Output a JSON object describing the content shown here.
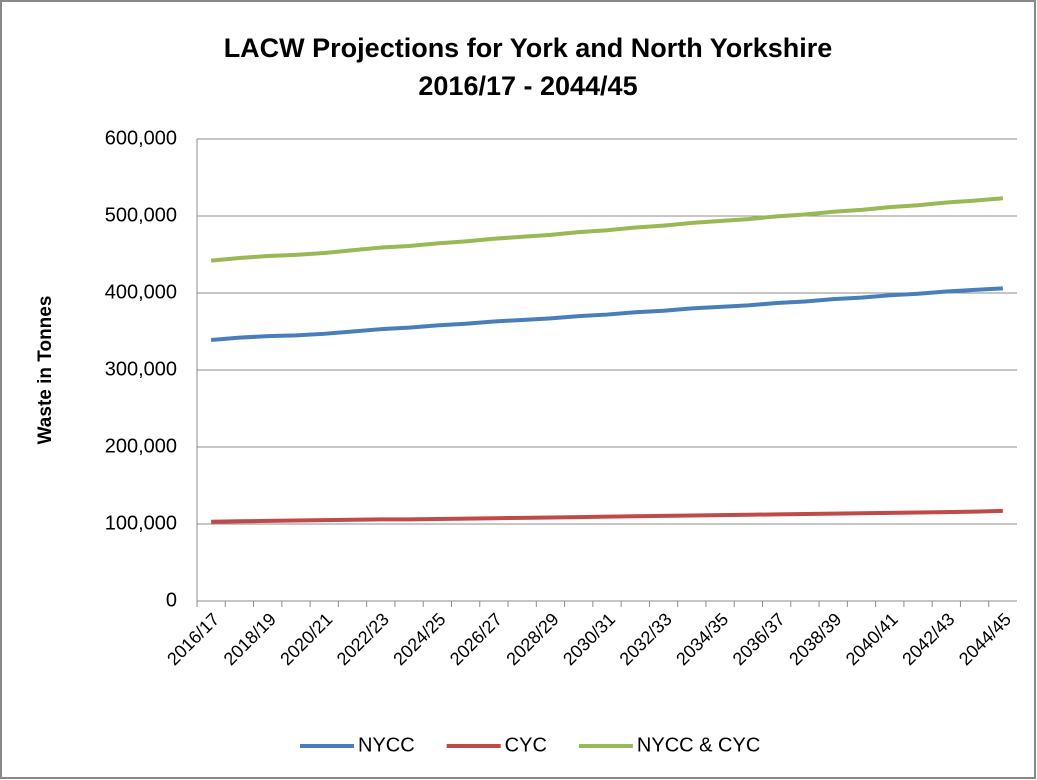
{
  "chart_data": {
    "type": "line",
    "title": "LACW Projections for York and North Yorkshire",
    "subtitle": "2016/17 - 2044/45",
    "y_label": "Waste in Tonnes",
    "categories": [
      "2016/17",
      null,
      "2018/19",
      null,
      "2020/21",
      null,
      "2022/23",
      null,
      "2024/25",
      null,
      "2026/27",
      null,
      "2028/29",
      null,
      "2030/31",
      null,
      "2032/33",
      null,
      "2034/35",
      null,
      "2036/37",
      null,
      "2038/39",
      null,
      "2040/41",
      null,
      "2042/43",
      null,
      "2044/45"
    ],
    "series": [
      {
        "name": "NYCC",
        "color": "#4a7ebb",
        "values": [
          339000,
          342000,
          344000,
          345000,
          347000,
          350000,
          353000,
          355000,
          358000,
          360000,
          363000,
          365000,
          367000,
          370000,
          372000,
          375000,
          377000,
          380000,
          382000,
          384000,
          387000,
          389000,
          392000,
          394000,
          397000,
          399000,
          402000,
          404000,
          406000
        ]
      },
      {
        "name": "CYC",
        "color": "#be4b48",
        "values": [
          103000,
          103500,
          104000,
          104500,
          105000,
          105500,
          106000,
          106000,
          106500,
          107000,
          107500,
          108000,
          108500,
          109000,
          109500,
          110000,
          110500,
          111000,
          111500,
          112000,
          112500,
          113000,
          113500,
          114000,
          114500,
          115000,
          115500,
          116000,
          117000
        ]
      },
      {
        "name": "NYCC & CYC",
        "color": "#98b954",
        "values": [
          442000,
          445500,
          448000,
          449500,
          452000,
          455500,
          459000,
          461000,
          464500,
          467000,
          470500,
          473000,
          475500,
          479000,
          481500,
          485000,
          487500,
          491000,
          493500,
          496000,
          499500,
          502000,
          505500,
          508000,
          511500,
          514000,
          517500,
          520000,
          523000
        ]
      }
    ],
    "ylim": [
      0,
      600000
    ],
    "yticks": [
      0,
      {
        "value": 100000,
        "label": "100,000"
      },
      {
        "value": 200000,
        "label": "200,000"
      },
      {
        "value": 300000,
        "label": "300,000"
      },
      {
        "value": 400000,
        "label": "400,000"
      },
      {
        "value": 500000,
        "label": "500,000"
      },
      {
        "value": 600000,
        "label": "600,000"
      }
    ],
    "grid": true,
    "legend": "bottom"
  }
}
